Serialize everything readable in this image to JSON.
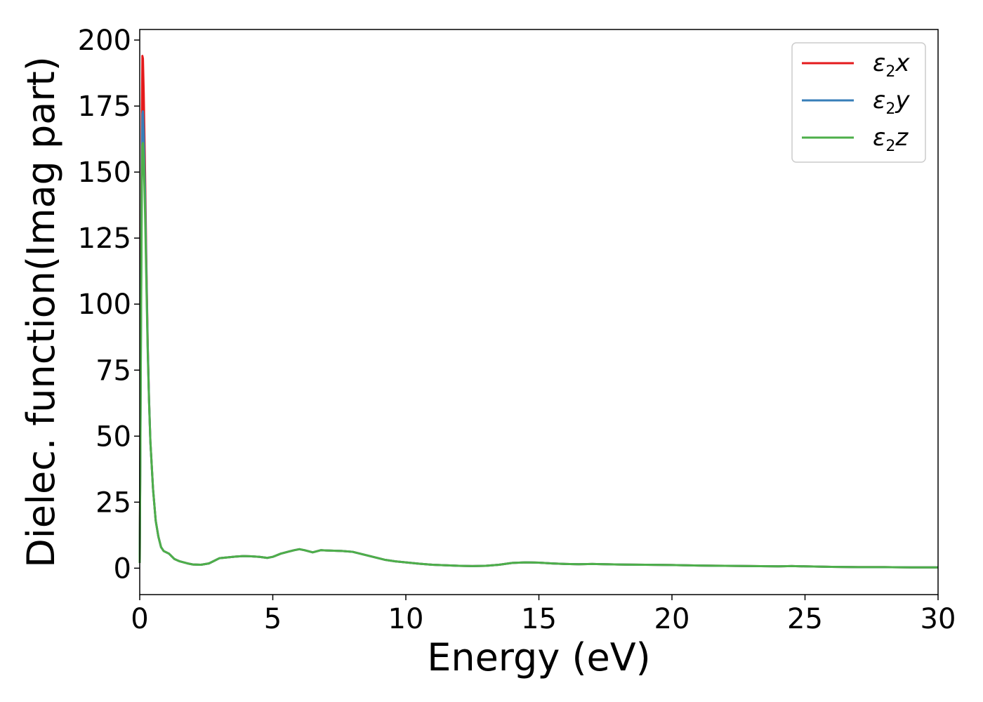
{
  "chart_data": {
    "type": "line",
    "title": "",
    "xlabel": "Energy (eV)",
    "ylabel": "Dielec. function(Imag part)",
    "xlim": [
      0,
      30
    ],
    "ylim": [
      -10,
      204
    ],
    "xticks": [
      0,
      5,
      10,
      15,
      20,
      25,
      30
    ],
    "xtick_labels": [
      "0",
      "5",
      "10",
      "15",
      "20",
      "25",
      "30"
    ],
    "yticks": [
      0,
      25,
      50,
      75,
      100,
      125,
      150,
      175,
      200
    ],
    "ytick_labels": [
      "0",
      "25",
      "50",
      "75",
      "100",
      "125",
      "150",
      "175",
      "200"
    ],
    "grid": false,
    "legend_position": "top-right",
    "series": [
      {
        "name": "ε2x",
        "legend_symbol": "ε",
        "legend_sub": "2",
        "legend_var": "x",
        "color": "#e41a1c",
        "x": [
          0,
          0.02,
          0.05,
          0.08,
          0.1,
          0.12,
          0.15,
          0.2,
          0.25,
          0.3,
          0.35,
          0.4,
          0.5,
          0.6,
          0.7,
          0.8,
          0.9,
          1.0,
          1.1,
          1.2,
          1.3,
          1.5,
          1.8,
          2.0,
          2.3,
          2.6,
          2.8,
          3.0,
          3.3,
          3.6,
          3.9,
          4.2,
          4.5,
          4.8,
          5.0,
          5.3,
          5.6,
          5.8,
          6.0,
          6.2,
          6.5,
          6.8,
          7.0,
          7.3,
          7.6,
          8.0,
          8.4,
          8.8,
          9.2,
          9.6,
          10,
          10.5,
          11,
          11.5,
          12,
          12.5,
          13,
          13.5,
          14,
          14.5,
          15,
          15.5,
          16,
          16.5,
          17,
          17.5,
          18,
          19,
          20,
          21,
          22,
          23,
          24,
          24.5,
          25,
          26,
          27,
          28,
          29,
          30
        ],
        "values": [
          2,
          40,
          110,
          170,
          194,
          193,
          180,
          150,
          115,
          85,
          64,
          48,
          30,
          18,
          12,
          8,
          6.5,
          6,
          5.5,
          4.5,
          3.5,
          2.6,
          1.8,
          1.4,
          1.3,
          1.8,
          2.8,
          3.8,
          4.1,
          4.4,
          4.6,
          4.5,
          4.3,
          3.9,
          4.3,
          5.5,
          6.3,
          6.8,
          7.2,
          6.8,
          6.0,
          6.8,
          6.7,
          6.6,
          6.5,
          6.2,
          5.2,
          4.2,
          3.2,
          2.6,
          2.2,
          1.7,
          1.3,
          1.1,
          0.9,
          0.8,
          0.9,
          1.3,
          2.0,
          2.2,
          2.1,
          1.8,
          1.6,
          1.5,
          1.6,
          1.5,
          1.4,
          1.3,
          1.2,
          1.0,
          0.9,
          0.8,
          0.7,
          0.8,
          0.7,
          0.5,
          0.4,
          0.4,
          0.3,
          0.3
        ]
      },
      {
        "name": "ε2y",
        "legend_symbol": "ε",
        "legend_sub": "2",
        "legend_var": "y",
        "color": "#377eb8",
        "x": [
          0,
          0.02,
          0.05,
          0.08,
          0.1,
          0.12,
          0.15,
          0.2,
          0.25,
          0.3,
          0.35,
          0.4,
          0.5,
          0.6,
          0.7,
          0.8,
          0.9,
          1.0,
          1.1,
          1.2,
          1.3,
          1.5,
          1.8,
          2.0,
          2.3,
          2.6,
          2.8,
          3.0,
          3.3,
          3.6,
          3.9,
          4.2,
          4.5,
          4.8,
          5.0,
          5.3,
          5.6,
          5.8,
          6.0,
          6.2,
          6.5,
          6.8,
          7.0,
          7.3,
          7.6,
          8.0,
          8.4,
          8.8,
          9.2,
          9.6,
          10,
          10.5,
          11,
          11.5,
          12,
          12.5,
          13,
          13.5,
          14,
          14.5,
          15,
          15.5,
          16,
          16.5,
          17,
          17.5,
          18,
          19,
          20,
          21,
          22,
          23,
          24,
          24.5,
          25,
          26,
          27,
          28,
          29,
          30
        ],
        "values": [
          2,
          38,
          100,
          155,
          172,
          173,
          165,
          142,
          112,
          84,
          64,
          48,
          30,
          18,
          12,
          8,
          6.5,
          6,
          5.5,
          4.5,
          3.5,
          2.6,
          1.8,
          1.4,
          1.3,
          1.8,
          2.8,
          3.8,
          4.1,
          4.4,
          4.6,
          4.5,
          4.3,
          3.9,
          4.3,
          5.5,
          6.3,
          6.8,
          7.2,
          6.8,
          6.0,
          6.8,
          6.7,
          6.6,
          6.5,
          6.2,
          5.2,
          4.2,
          3.2,
          2.6,
          2.2,
          1.7,
          1.3,
          1.1,
          0.9,
          0.8,
          0.9,
          1.3,
          2.0,
          2.2,
          2.1,
          1.8,
          1.6,
          1.5,
          1.6,
          1.5,
          1.4,
          1.3,
          1.2,
          1.0,
          0.9,
          0.8,
          0.7,
          0.8,
          0.7,
          0.5,
          0.4,
          0.4,
          0.3,
          0.3
        ]
      },
      {
        "name": "ε2z",
        "legend_symbol": "ε",
        "legend_sub": "2",
        "legend_var": "z",
        "color": "#4daf4a",
        "x": [
          0,
          0.02,
          0.05,
          0.08,
          0.1,
          0.12,
          0.15,
          0.2,
          0.25,
          0.3,
          0.35,
          0.4,
          0.5,
          0.6,
          0.7,
          0.8,
          0.9,
          1.0,
          1.1,
          1.2,
          1.3,
          1.5,
          1.8,
          2.0,
          2.3,
          2.6,
          2.8,
          3.0,
          3.3,
          3.6,
          3.9,
          4.2,
          4.5,
          4.8,
          5.0,
          5.3,
          5.6,
          5.8,
          6.0,
          6.2,
          6.5,
          6.8,
          7.0,
          7.3,
          7.6,
          8.0,
          8.4,
          8.8,
          9.2,
          9.6,
          10,
          10.5,
          11,
          11.5,
          12,
          12.5,
          13,
          13.5,
          14,
          14.5,
          15,
          15.5,
          16,
          16.5,
          17,
          17.5,
          18,
          19,
          20,
          21,
          22,
          23,
          24,
          24.5,
          25,
          26,
          27,
          28,
          29,
          30
        ],
        "values": [
          2,
          36,
          95,
          145,
          160,
          161,
          155,
          135,
          108,
          82,
          63,
          48,
          30,
          18,
          12,
          8,
          6.5,
          6,
          5.5,
          4.5,
          3.5,
          2.6,
          1.8,
          1.4,
          1.3,
          1.8,
          2.8,
          3.8,
          4.1,
          4.4,
          4.6,
          4.5,
          4.3,
          3.9,
          4.3,
          5.5,
          6.3,
          6.8,
          7.2,
          6.8,
          6.0,
          6.8,
          6.7,
          6.6,
          6.5,
          6.2,
          5.2,
          4.2,
          3.2,
          2.6,
          2.2,
          1.7,
          1.3,
          1.1,
          0.9,
          0.8,
          0.9,
          1.3,
          2.0,
          2.2,
          2.1,
          1.8,
          1.6,
          1.5,
          1.6,
          1.5,
          1.4,
          1.3,
          1.2,
          1.0,
          0.9,
          0.8,
          0.7,
          0.8,
          0.7,
          0.5,
          0.4,
          0.4,
          0.3,
          0.3
        ]
      }
    ]
  }
}
